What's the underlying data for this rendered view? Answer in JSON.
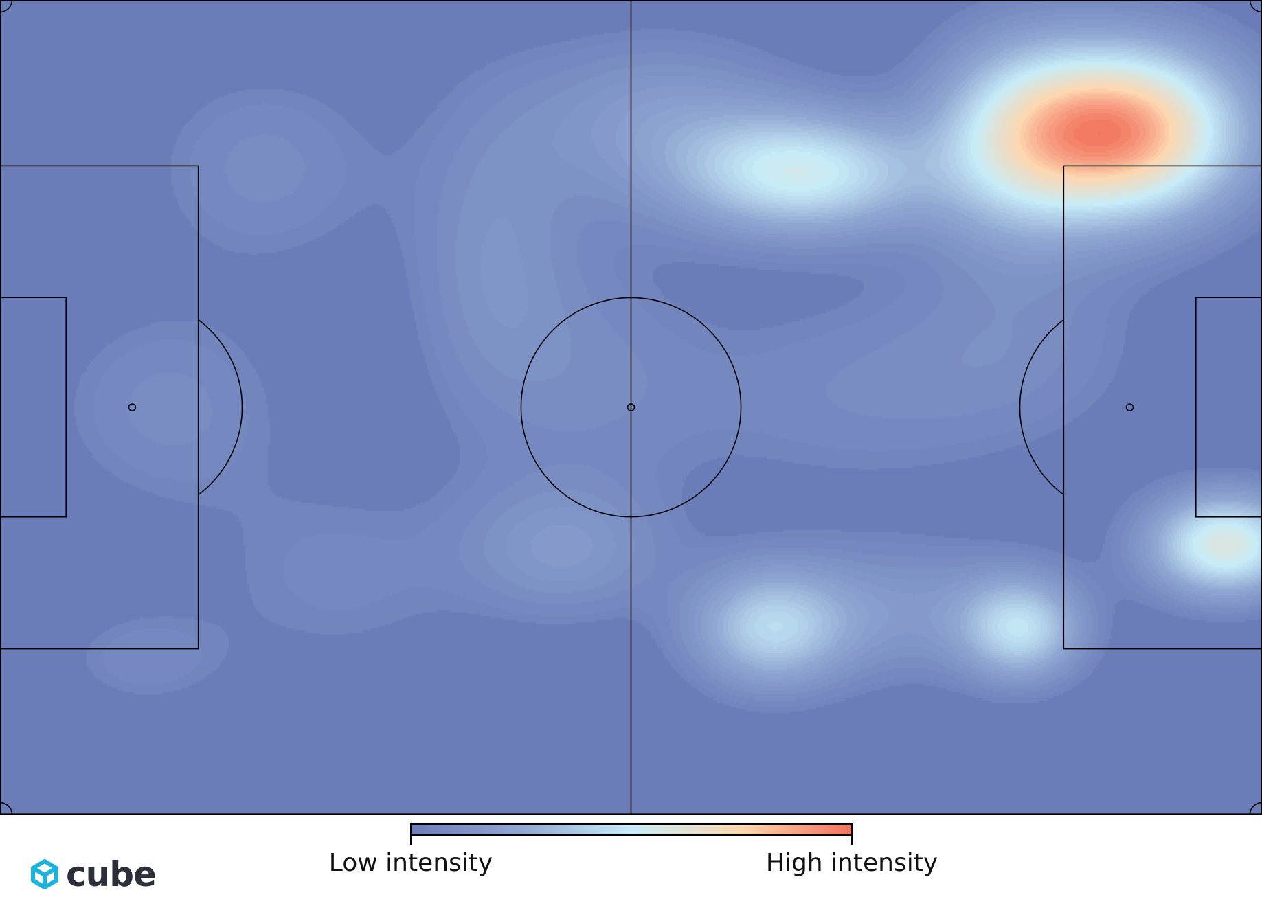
{
  "chart_data": {
    "type": "heatmap",
    "title": "",
    "pitch_length_m": 105,
    "pitch_width_m": 68,
    "density_peaks": [
      {
        "x": 93.0,
        "y": 11.0,
        "sx": 7.0,
        "sy": 5.0,
        "w": 1.0
      },
      {
        "x": 84.0,
        "y": 12.0,
        "sx": 5.0,
        "sy": 6.0,
        "w": 0.32
      },
      {
        "x": 67.0,
        "y": 14.5,
        "sx": 7.0,
        "sy": 3.5,
        "w": 0.55
      },
      {
        "x": 55.0,
        "y": 10.0,
        "sx": 8.0,
        "sy": 5.0,
        "w": 0.2
      },
      {
        "x": 102.0,
        "y": 45.5,
        "sx": 4.5,
        "sy": 3.0,
        "w": 0.65
      },
      {
        "x": 64.0,
        "y": 52.5,
        "sx": 4.5,
        "sy": 3.5,
        "w": 0.42
      },
      {
        "x": 85.0,
        "y": 52.5,
        "sx": 3.5,
        "sy": 3.0,
        "w": 0.45
      },
      {
        "x": 75.0,
        "y": 51.0,
        "sx": 8.0,
        "sy": 4.0,
        "w": 0.18
      },
      {
        "x": 47.0,
        "y": 46.0,
        "sx": 6.0,
        "sy": 4.0,
        "w": 0.18
      },
      {
        "x": 41.0,
        "y": 22.0,
        "sx": 5.0,
        "sy": 10.0,
        "w": 0.15
      },
      {
        "x": 22.0,
        "y": 14.0,
        "sx": 7.0,
        "sy": 6.0,
        "w": 0.12
      },
      {
        "x": 14.0,
        "y": 34.0,
        "sx": 7.0,
        "sy": 6.0,
        "w": 0.12
      },
      {
        "x": 12.0,
        "y": 55.0,
        "sx": 5.0,
        "sy": 3.0,
        "w": 0.1
      },
      {
        "x": 28.0,
        "y": 48.0,
        "sx": 8.0,
        "sy": 6.0,
        "w": 0.09
      },
      {
        "x": 70.0,
        "y": 33.0,
        "sx": 12.0,
        "sy": 6.0,
        "w": 0.1
      },
      {
        "x": 85.0,
        "y": 28.0,
        "sx": 8.0,
        "sy": 6.0,
        "w": 0.09
      },
      {
        "x": 50.0,
        "y": 31.0,
        "sx": 6.0,
        "sy": 8.0,
        "w": 0.08
      }
    ],
    "colorbar": {
      "low_label": "Low intensity",
      "high_label": "High intensity",
      "colors": [
        "#6a7db8",
        "#90a6d2",
        "#c7ecf8",
        "#fcd7b0",
        "#f2705c"
      ]
    },
    "pitch_line_color": "#000000",
    "background_color": "#6a7db8"
  },
  "logo": {
    "text": "cube",
    "icon": "cube-icon",
    "color": "#1ab3de"
  }
}
